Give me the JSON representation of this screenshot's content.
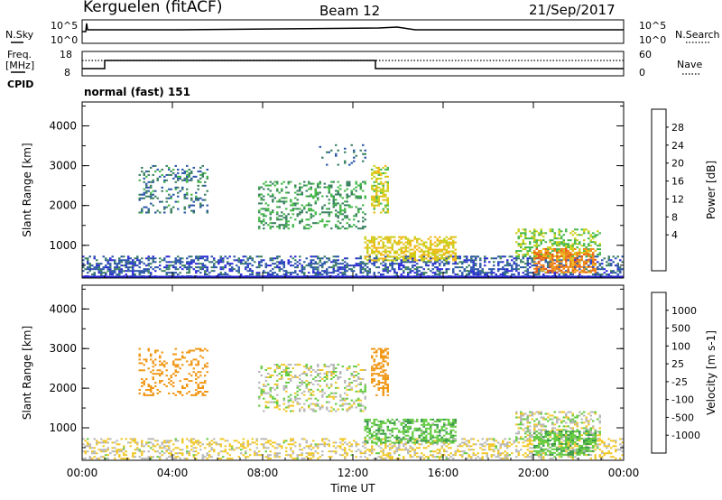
{
  "header": {
    "station": "Kerguelen (fitACF)",
    "beam": "Beam 12",
    "date": "21/Sep/2017"
  },
  "noise_panel": {
    "left_label": "N.Sky",
    "right_label": "N.Search",
    "left_ticks": [
      "10^5",
      "10^0"
    ],
    "right_ticks": [
      "10^5",
      "10^0"
    ]
  },
  "freq_panel": {
    "left_label_1": "Freq.",
    "left_label_2": "[MHz]",
    "right_label": "Nave",
    "left_ticks": [
      "18",
      "8"
    ],
    "right_ticks": [
      "60",
      "0"
    ],
    "cpid_label": "CPID",
    "cpid_value": "normal (fast) 151"
  },
  "chart_data": [
    {
      "type": "heatmap",
      "title": "",
      "parameter": "power",
      "xlabel": "Time UT",
      "ylabel": "Slant Range [km]",
      "x_ticks": [
        "00:00",
        "04:00",
        "08:00",
        "12:00",
        "16:00",
        "20:00",
        "00:00"
      ],
      "x_range_hours": [
        0,
        24
      ],
      "y_ticks": [
        1000,
        2000,
        3000,
        4000
      ],
      "ylim": [
        180,
        4600
      ],
      "colorbar_label": "Power [dB]",
      "colorbar_ticks": [
        "28",
        "24",
        "20",
        "16",
        "12",
        "8",
        "4"
      ],
      "colorbar_colors": [
        "#2a28d6",
        "#2a55a8",
        "#3a8060",
        "#44b848",
        "#c8d018",
        "#f0b818",
        "#f08818",
        "#e85a18",
        "#e82818"
      ],
      "echo_regions": [
        {
          "t0": 0.0,
          "t1": 24.0,
          "r0": 200,
          "r1": 700,
          "value": 6,
          "density": 0.45
        },
        {
          "t0": 2.5,
          "t1": 5.5,
          "r0": 1800,
          "r1": 3000,
          "value": 9,
          "density": 0.25
        },
        {
          "t0": 7.8,
          "t1": 12.5,
          "r0": 1400,
          "r1": 2600,
          "value": 12,
          "density": 0.3
        },
        {
          "t0": 10.5,
          "t1": 12.5,
          "r0": 3000,
          "r1": 3500,
          "value": 8,
          "density": 0.12
        },
        {
          "t0": 12.8,
          "t1": 13.5,
          "r0": 1800,
          "r1": 3000,
          "value": 18,
          "density": 0.5
        },
        {
          "t0": 12.5,
          "t1": 16.5,
          "r0": 600,
          "r1": 1200,
          "value": 20,
          "density": 0.55
        },
        {
          "t0": 19.2,
          "t1": 23.0,
          "r0": 700,
          "r1": 1400,
          "value": 16,
          "density": 0.45
        },
        {
          "t0": 20.0,
          "t1": 22.8,
          "r0": 300,
          "r1": 900,
          "value": 26,
          "density": 0.6
        }
      ]
    },
    {
      "type": "heatmap",
      "title": "",
      "parameter": "velocity",
      "xlabel": "Time UT",
      "ylabel": "Slant Range [km]",
      "x_ticks": [
        "00:00",
        "04:00",
        "08:00",
        "12:00",
        "16:00",
        "20:00",
        "00:00"
      ],
      "x_range_hours": [
        0,
        24
      ],
      "y_ticks": [
        1000,
        2000,
        3000,
        4000
      ],
      "ylim": [
        180,
        4600
      ],
      "colorbar_label": "Velocity [m s-1]",
      "colorbar_ticks": [
        "1000",
        "500",
        "100",
        "25",
        "-25",
        "-100",
        "-500",
        "-1000"
      ],
      "colorbar_colors": [
        "#e02020",
        "#f06018",
        "#f09818",
        "#f0c828",
        "#b8b8b8",
        "#66cc44",
        "#3a9a4a",
        "#2a60a8",
        "#2a36c8"
      ],
      "echo_regions": [
        {
          "t0": 0.0,
          "t1": 24.0,
          "r0": 200,
          "r1": 700,
          "value": -30,
          "density": 0.35
        },
        {
          "t0": 2.5,
          "t1": 5.5,
          "r0": 1800,
          "r1": 3000,
          "value": -250,
          "density": 0.25
        },
        {
          "t0": 7.8,
          "t1": 12.5,
          "r0": 1400,
          "r1": 2600,
          "value": 0,
          "density": 0.3
        },
        {
          "t0": 12.8,
          "t1": 13.5,
          "r0": 1800,
          "r1": 3000,
          "value": -200,
          "density": 0.45
        },
        {
          "t0": 12.5,
          "t1": 16.5,
          "r0": 600,
          "r1": 1200,
          "value": 80,
          "density": 0.55
        },
        {
          "t0": 19.2,
          "t1": 23.0,
          "r0": 700,
          "r1": 1400,
          "value": 0,
          "density": 0.45
        },
        {
          "t0": 20.0,
          "t1": 22.8,
          "r0": 300,
          "r1": 900,
          "value": 80,
          "density": 0.6
        }
      ]
    }
  ]
}
